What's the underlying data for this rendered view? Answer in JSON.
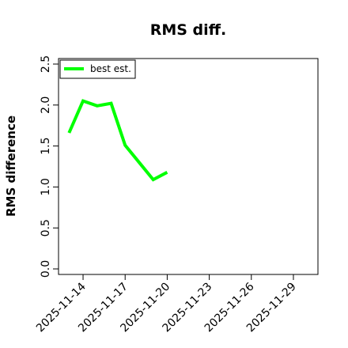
{
  "chart_data": {
    "type": "line",
    "title": "RMS diff.",
    "xlabel": "",
    "ylabel": "RMS difference",
    "ylim": [
      0,
      2.5
    ],
    "xlim": [
      "2025-11-12T06:00",
      "2025-11-30T18:00"
    ],
    "x_ticks": [
      "2025-11-14",
      "2025-11-17",
      "2025-11-20",
      "2025-11-23",
      "2025-11-26",
      "2025-11-29"
    ],
    "y_ticks": [
      "0.0",
      "0.5",
      "1.0",
      "1.5",
      "2.0",
      "2.5"
    ],
    "legend_position": "top-left",
    "grid": false,
    "series": [
      {
        "name": "best est.",
        "color": "#00ff00",
        "x": [
          "2025-11-13",
          "2025-11-14",
          "2025-11-15",
          "2025-11-16",
          "2025-11-17",
          "2025-11-18",
          "2025-11-19",
          "2025-11-20"
        ],
        "values": [
          1.66,
          2.05,
          1.99,
          2.02,
          1.51,
          1.3,
          1.09,
          1.18
        ]
      }
    ]
  }
}
